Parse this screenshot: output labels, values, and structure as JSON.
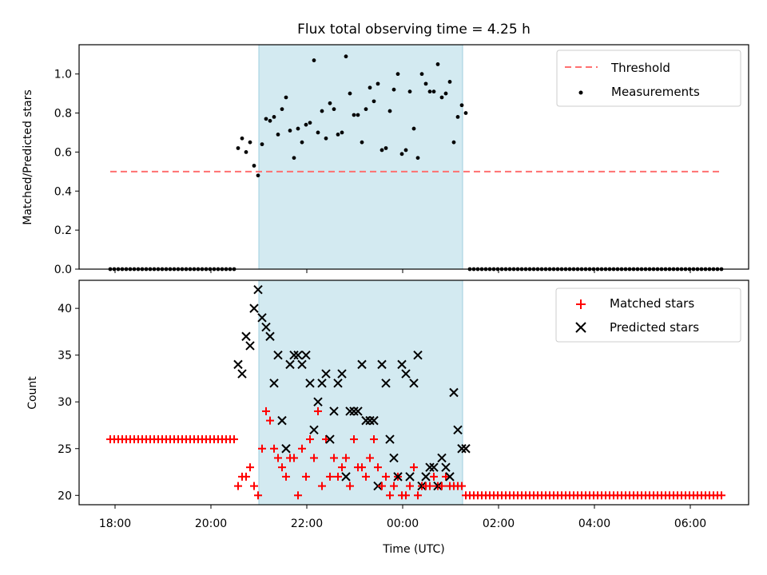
{
  "chart_data": {
    "title": "Flux total observing time = 4.25 h",
    "x_start": "17:54",
    "x_end": "06:39",
    "x_step_minutes": 5,
    "x_tick_labels": [
      "18:00",
      "20:00",
      "22:00",
      "00:00",
      "02:00",
      "04:00",
      "06:00"
    ],
    "xlabel": "Time (UTC)",
    "highlight_span": {
      "start": "21:00",
      "end": "01:15"
    },
    "upper_panel": {
      "type": "scatter",
      "ylabel": "Matched/Predicted stars",
      "ylim": [
        0,
        1.15
      ],
      "y_ticks": [
        "0.0",
        "0.2",
        "0.4",
        "0.6",
        "0.8",
        "1.0"
      ],
      "threshold_value": 0.5,
      "legend": {
        "threshold_label": "Threshold",
        "measurements_label": "Measurements"
      },
      "measurement_ratios": [
        0.62,
        0.67,
        0.6,
        0.65,
        0.53,
        0.48,
        0.64,
        0.77,
        0.76,
        0.78,
        0.69,
        0.82,
        0.88,
        0.71,
        0.57,
        0.72,
        0.65,
        0.74,
        0.75,
        1.07,
        0.7,
        0.81,
        0.67,
        0.85,
        0.82,
        0.69,
        0.7,
        1.09,
        0.9,
        0.79,
        0.79,
        0.65,
        0.82,
        0.93,
        0.86,
        0.95,
        0.61,
        0.62,
        0.81,
        0.92,
        1.0,
        0.59,
        0.61,
        0.91,
        0.72,
        0.57,
        1.0,
        0.95,
        0.91,
        0.91,
        1.05,
        0.88,
        0.9,
        0.96,
        0.65,
        0.78,
        0.84,
        0.8
      ]
    },
    "lower_panel": {
      "type": "scatter",
      "ylabel": "Count",
      "ylim": [
        19,
        43
      ],
      "y_ticks": [
        "20",
        "25",
        "30",
        "35",
        "40"
      ],
      "legend": {
        "matched_label": "Matched stars",
        "predicted_label": "Predicted stars"
      },
      "baseline_matched_before": 26,
      "baseline_matched_after": 20,
      "matched_during": [
        21,
        22,
        22,
        23,
        21,
        20,
        25,
        29,
        28,
        25,
        24,
        23,
        22,
        24,
        24,
        20,
        25,
        22,
        26,
        24,
        29,
        21,
        26,
        22,
        24,
        22,
        23,
        24,
        21,
        26,
        23,
        23,
        22,
        24,
        26,
        23,
        21,
        22,
        20,
        21,
        22,
        20,
        20,
        21,
        23,
        20,
        21,
        21,
        21,
        22,
        21,
        21,
        22,
        21,
        21,
        21,
        21,
        20
      ],
      "predicted_during": [
        34,
        33,
        37,
        36,
        40,
        42,
        39,
        38,
        37,
        32,
        35,
        28,
        25,
        34,
        35,
        35,
        34,
        35,
        32,
        27,
        30,
        32,
        33,
        26,
        29,
        32,
        33,
        22,
        29,
        29,
        29,
        34,
        28,
        28,
        28,
        21,
        34,
        32,
        26,
        24,
        22,
        34,
        33,
        22,
        32,
        35,
        21,
        22,
        23,
        23,
        21,
        24,
        23,
        22,
        31,
        27,
        25,
        25
      ]
    }
  }
}
